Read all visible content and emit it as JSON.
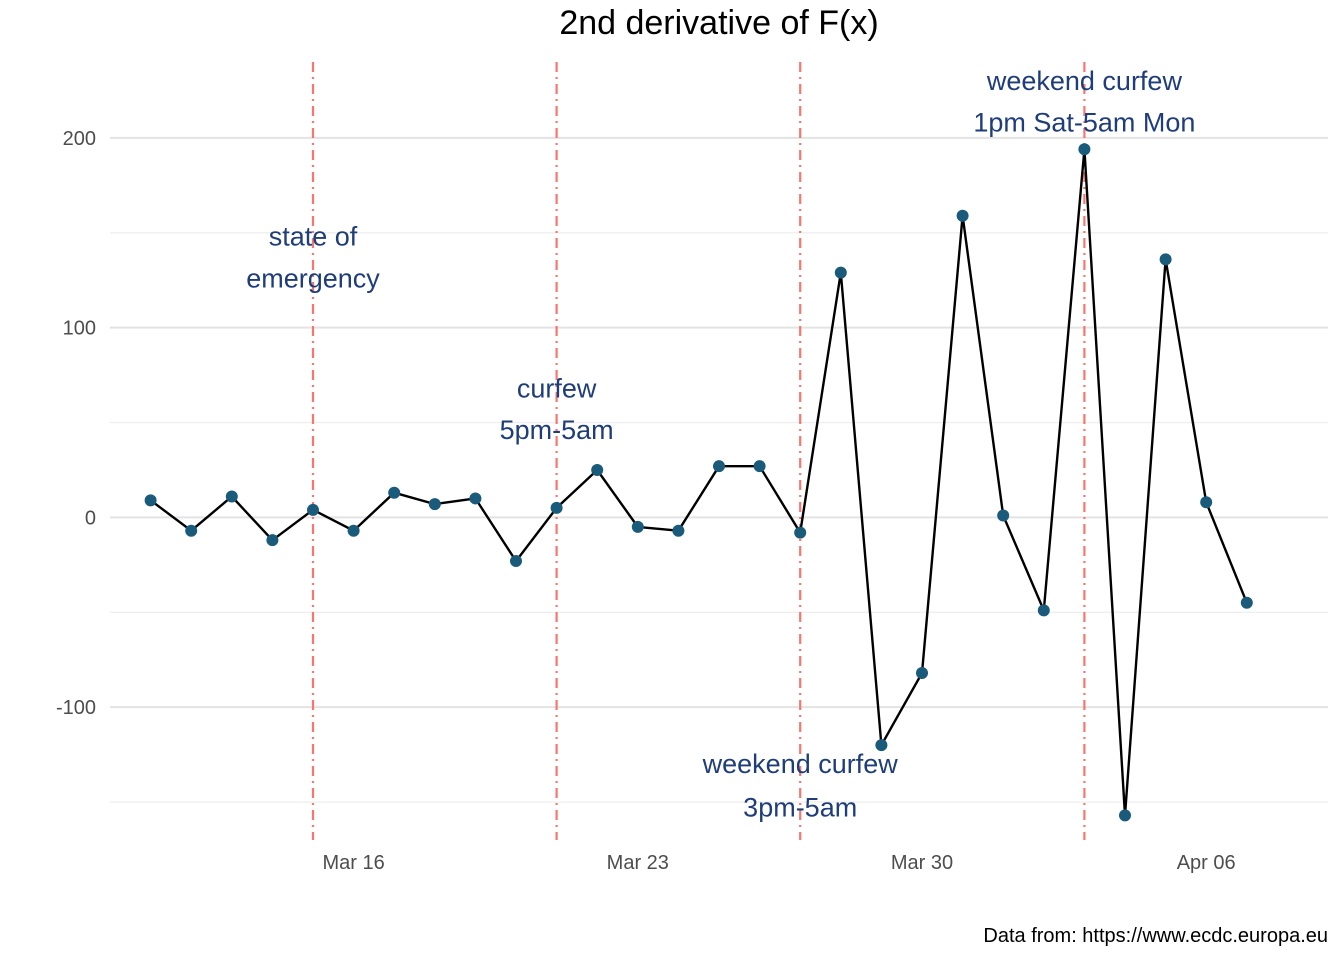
{
  "chart_data": {
    "type": "line",
    "title": "2nd derivative of F(x)",
    "caption": "Data from: https://www.ecdc.europa.eu",
    "xlabel": "",
    "ylabel": "",
    "x_ticks": [
      {
        "date": "2020-03-16",
        "label": "Mar 16"
      },
      {
        "date": "2020-03-23",
        "label": "Mar 23"
      },
      {
        "date": "2020-03-30",
        "label": "Mar 30"
      },
      {
        "date": "2020-04-06",
        "label": "Apr 06"
      }
    ],
    "y_ticks": [
      {
        "value": -100,
        "label": "-100"
      },
      {
        "value": 0,
        "label": "0"
      },
      {
        "value": 100,
        "label": "100"
      },
      {
        "value": 200,
        "label": "200"
      }
    ],
    "xlim": [
      "2020-03-10",
      "2020-04-09"
    ],
    "ylim": [
      -170,
      240
    ],
    "grid": true,
    "line_color": "#000000",
    "point_color": "#1a5a7a",
    "series": [
      {
        "points": [
          {
            "x": "2020-03-11",
            "y": 9
          },
          {
            "x": "2020-03-12",
            "y": -7
          },
          {
            "x": "2020-03-13",
            "y": 11
          },
          {
            "x": "2020-03-14",
            "y": -12
          },
          {
            "x": "2020-03-15",
            "y": 4
          },
          {
            "x": "2020-03-16",
            "y": -7
          },
          {
            "x": "2020-03-17",
            "y": 13
          },
          {
            "x": "2020-03-18",
            "y": 7
          },
          {
            "x": "2020-03-19",
            "y": 10
          },
          {
            "x": "2020-03-20",
            "y": -23
          },
          {
            "x": "2020-03-21",
            "y": 5
          },
          {
            "x": "2020-03-22",
            "y": 25
          },
          {
            "x": "2020-03-23",
            "y": -5
          },
          {
            "x": "2020-03-24",
            "y": -7
          },
          {
            "x": "2020-03-25",
            "y": 27
          },
          {
            "x": "2020-03-26",
            "y": 27
          },
          {
            "x": "2020-03-27",
            "y": -8
          },
          {
            "x": "2020-03-28",
            "y": 129
          },
          {
            "x": "2020-03-29",
            "y": -120
          },
          {
            "x": "2020-03-30",
            "y": -82
          },
          {
            "x": "2020-03-31",
            "y": 159
          },
          {
            "x": "2020-04-01",
            "y": 1
          },
          {
            "x": "2020-04-02",
            "y": -49
          },
          {
            "x": "2020-04-03",
            "y": 194
          },
          {
            "x": "2020-04-04",
            "y": -157
          },
          {
            "x": "2020-04-05",
            "y": 136
          },
          {
            "x": "2020-04-06",
            "y": 8
          },
          {
            "x": "2020-04-07",
            "y": -45
          }
        ]
      }
    ],
    "event_line_color": "#f8766d",
    "annotation_color": "#1f3d7a",
    "events": [
      {
        "x": "2020-03-15",
        "lines": [
          "state of",
          "emergency"
        ],
        "label_y": [
          148,
          126
        ]
      },
      {
        "x": "2020-03-21",
        "lines": [
          "curfew",
          "5pm-5am"
        ],
        "label_y": [
          68,
          46
        ]
      },
      {
        "x": "2020-03-27",
        "lines": [
          "weekend curfew",
          "3pm-5am"
        ],
        "label_y": [
          -130,
          -153
        ]
      },
      {
        "x": "2020-04-03",
        "lines": [
          "weekend curfew",
          "1pm Sat-5am Mon"
        ],
        "label_y": [
          230,
          208
        ]
      }
    ]
  }
}
